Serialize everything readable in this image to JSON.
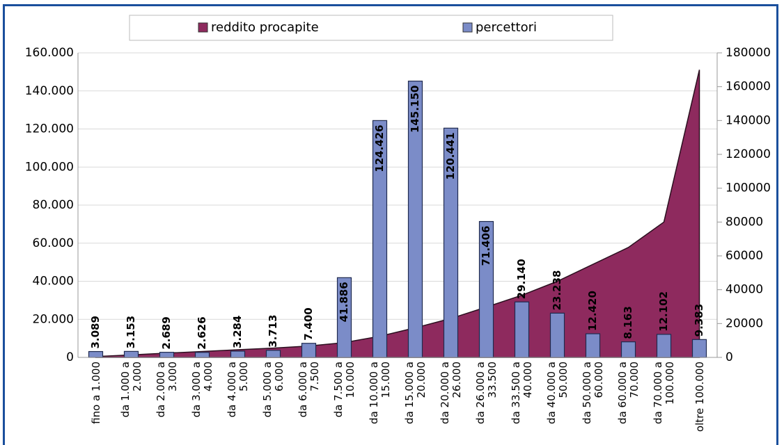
{
  "chart_data": {
    "type": "combo",
    "categories": [
      "fino a 1.000",
      "da 1.000 a 2.000",
      "da 2.000 a 3.000",
      "da 3.000 a 4.000",
      "da 4.000 a 5.000",
      "da 5.000 a 6.000",
      "da 6.000 a 7.500",
      "da 7.500 a 10.000",
      "da 10.000 a 15.000",
      "da 15.000 a 20.000",
      "da 20.000 a 26.000",
      "da 26.000 a 33.500",
      "da 33.500 a 40.000",
      "da 40.000 a 50.000",
      "da 50.000 a 60.000",
      "da 60.000 a 70.000",
      "da 70.000 a 100.000",
      "oltre 100.000"
    ],
    "series": [
      {
        "name": "reddito procapite",
        "type": "area",
        "axis": "y2",
        "color": "#8e2a5e",
        "values": [
          500,
          1500,
          2500,
          3500,
          4500,
          5500,
          6750,
          8750,
          12500,
          17500,
          23000,
          29750,
          36750,
          45000,
          55000,
          65000,
          80000,
          170000
        ]
      },
      {
        "name": "percettori",
        "type": "bar",
        "color": "#7b8cc8",
        "values": [
          3089,
          3153,
          2689,
          2626,
          3284,
          3713,
          7400,
          41886,
          124426,
          145150,
          120441,
          71406,
          29140,
          23238,
          12420,
          8163,
          12102,
          9383
        ],
        "value_labels": [
          "3.089",
          "3.153",
          "2.689",
          "2.626",
          "3.284",
          "3.713",
          "7.400",
          "41.886",
          "124.426",
          "145.150",
          "120.441",
          "71.406",
          "29.140",
          "23.238",
          "12.420",
          "8.163",
          "12.102",
          "9.383"
        ]
      }
    ],
    "ylim": [
      0,
      160000
    ],
    "yticks": [
      {
        "value": 0,
        "label": "0"
      },
      {
        "value": 20000,
        "label": "20.000"
      },
      {
        "value": 40000,
        "label": "40.000"
      },
      {
        "value": 60000,
        "label": "60.000"
      },
      {
        "value": 80000,
        "label": "80.000"
      },
      {
        "value": 100000,
        "label": "100.000"
      },
      {
        "value": 120000,
        "label": "120.000"
      },
      {
        "value": 140000,
        "label": "140.000"
      },
      {
        "value": 160000,
        "label": "160.000"
      }
    ],
    "y2lim": [
      0,
      180000
    ],
    "y2ticks": [
      0,
      20000,
      40000,
      60000,
      80000,
      100000,
      120000,
      140000,
      160000,
      180000
    ],
    "grid": true,
    "legend": "top"
  }
}
